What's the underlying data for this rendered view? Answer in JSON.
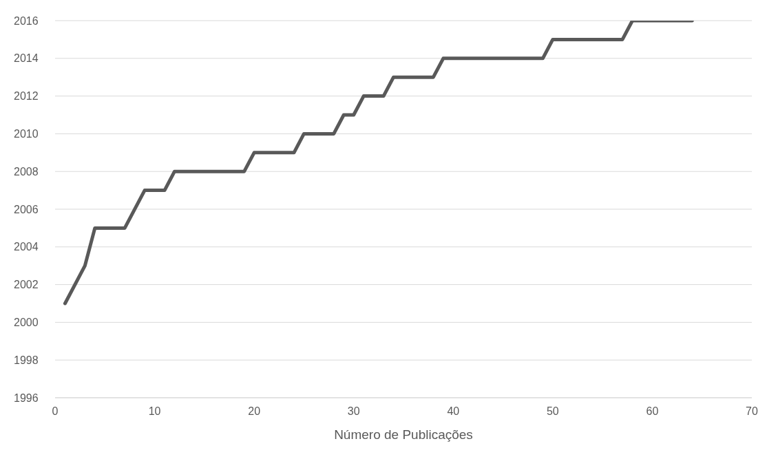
{
  "chart_data": {
    "type": "line",
    "xlabel": "Número de Publicações",
    "x": [
      1,
      3,
      4,
      7,
      9,
      11,
      12,
      19,
      20,
      24,
      25,
      28,
      29,
      30,
      31,
      33,
      34,
      38,
      39,
      49,
      50,
      57,
      58,
      64
    ],
    "series": [
      {
        "color": "#595959",
        "values": [
          2001,
          2003,
          2005,
          2005,
          2007,
          2007,
          2008,
          2008,
          2009,
          2009,
          2010,
          2010,
          2011,
          2011,
          2012,
          2012,
          2013,
          2013,
          2014,
          2014,
          2015,
          2015,
          2016,
          2016
        ]
      }
    ],
    "xlim": [
      0,
      70
    ],
    "xticks": [
      0,
      10,
      20,
      30,
      40,
      50,
      60,
      70
    ],
    "ylim": [
      1996,
      2016
    ],
    "yticks": [
      1996,
      1998,
      2000,
      2002,
      2004,
      2006,
      2008,
      2010,
      2012,
      2014,
      2016
    ],
    "grid": "y",
    "marker": "none",
    "line_style": "solid",
    "legend": false
  }
}
